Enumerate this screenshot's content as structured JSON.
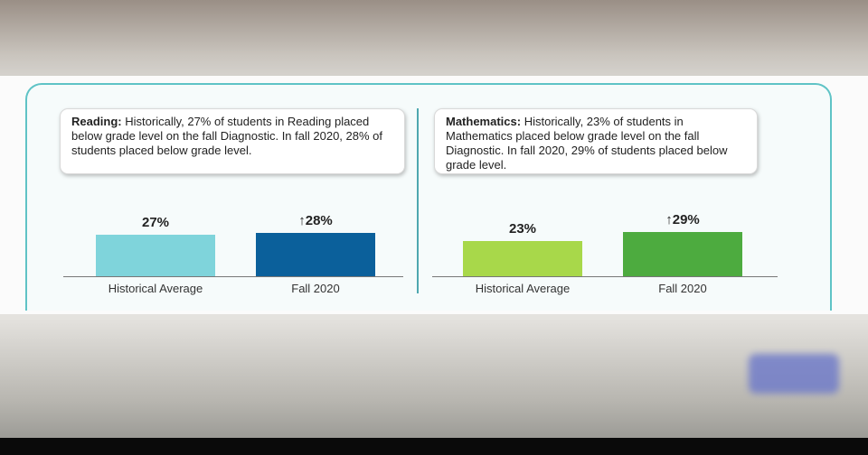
{
  "chart_data": [
    {
      "type": "bar",
      "annotation_label": "Reading:",
      "annotation": "Historically, 27% of students in Reading placed below grade level on the fall Diagnostic. In fall 2020, 28% of students placed below grade level.",
      "categories": [
        "Historical Average",
        "Fall 2020"
      ],
      "values": [
        27,
        28
      ],
      "value_labels": [
        "27%",
        "↑28%"
      ],
      "colors": [
        "#7fd4db",
        "#0b609b"
      ]
    },
    {
      "type": "bar",
      "annotation_label": "Mathematics:",
      "annotation": "Historically, 23% of students in Mathematics placed below grade level on the fall Diagnostic. In fall 2020, 29% of students placed below grade level.",
      "categories": [
        "Historical Average",
        "Fall 2020"
      ],
      "values": [
        23,
        29
      ],
      "value_labels": [
        "23%",
        "↑29%"
      ],
      "colors": [
        "#a8d84a",
        "#4dab3f"
      ]
    }
  ]
}
